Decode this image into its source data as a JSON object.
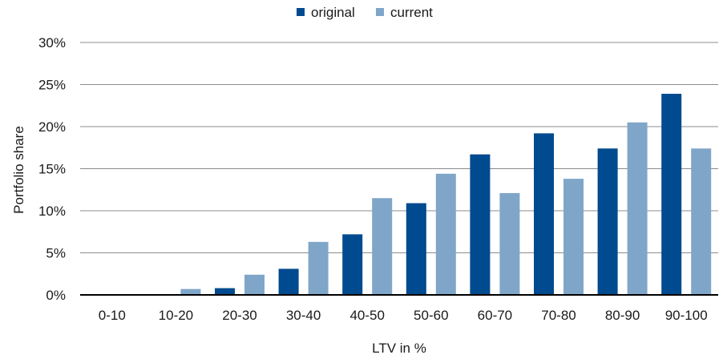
{
  "chart_data": {
    "type": "bar",
    "title": "",
    "xlabel": "LTV in %",
    "ylabel": "Portfolio share",
    "categories": [
      "0-10",
      "10-20",
      "20-30",
      "30-40",
      "40-50",
      "50-60",
      "60-70",
      "70-80",
      "80-90",
      "90-100"
    ],
    "series": [
      {
        "name": "original",
        "color": "#004a8f",
        "values": [
          0.0,
          0.0,
          0.8,
          3.1,
          7.2,
          10.9,
          16.7,
          19.2,
          17.4,
          23.9
        ]
      },
      {
        "name": "current",
        "color": "#7fa6c9",
        "values": [
          0.0,
          0.7,
          2.4,
          6.3,
          11.5,
          14.4,
          12.1,
          13.8,
          20.5,
          17.4
        ]
      }
    ],
    "ylim": [
      0,
      30
    ],
    "yticks": [
      0,
      5,
      10,
      15,
      20,
      25,
      30
    ],
    "ytick_labels": [
      "0%",
      "5%",
      "10%",
      "15%",
      "20%",
      "25%",
      "30%"
    ],
    "grid": true,
    "legend_position": "top-center"
  }
}
